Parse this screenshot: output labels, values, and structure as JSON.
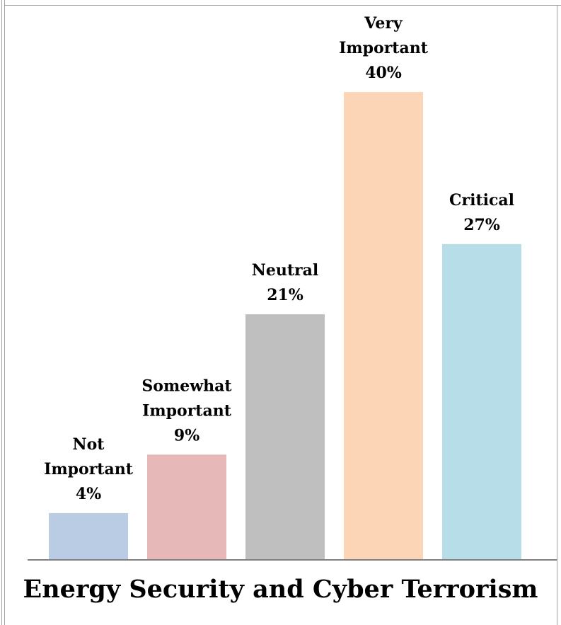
{
  "chart_data": {
    "type": "bar",
    "title": "Energy Security and Cyber Terrorism",
    "categories": [
      [
        "Not",
        "Important"
      ],
      [
        "Somewhat",
        "Important"
      ],
      [
        "Neutral"
      ],
      [
        "Very",
        "Important"
      ],
      [
        "Critical"
      ]
    ],
    "values": [
      4,
      9,
      21,
      40,
      27
    ],
    "value_labels": [
      "4%",
      "9%",
      "21%",
      "40%",
      "27%"
    ],
    "colors": [
      "#b9cce4",
      "#e6b9b8",
      "#bfbfbf",
      "#fbd5b5",
      "#b7dde8"
    ],
    "unit": "%",
    "ylim": [
      0,
      40
    ],
    "grid": false,
    "legend": "none",
    "axis_line_color": "#808080"
  }
}
